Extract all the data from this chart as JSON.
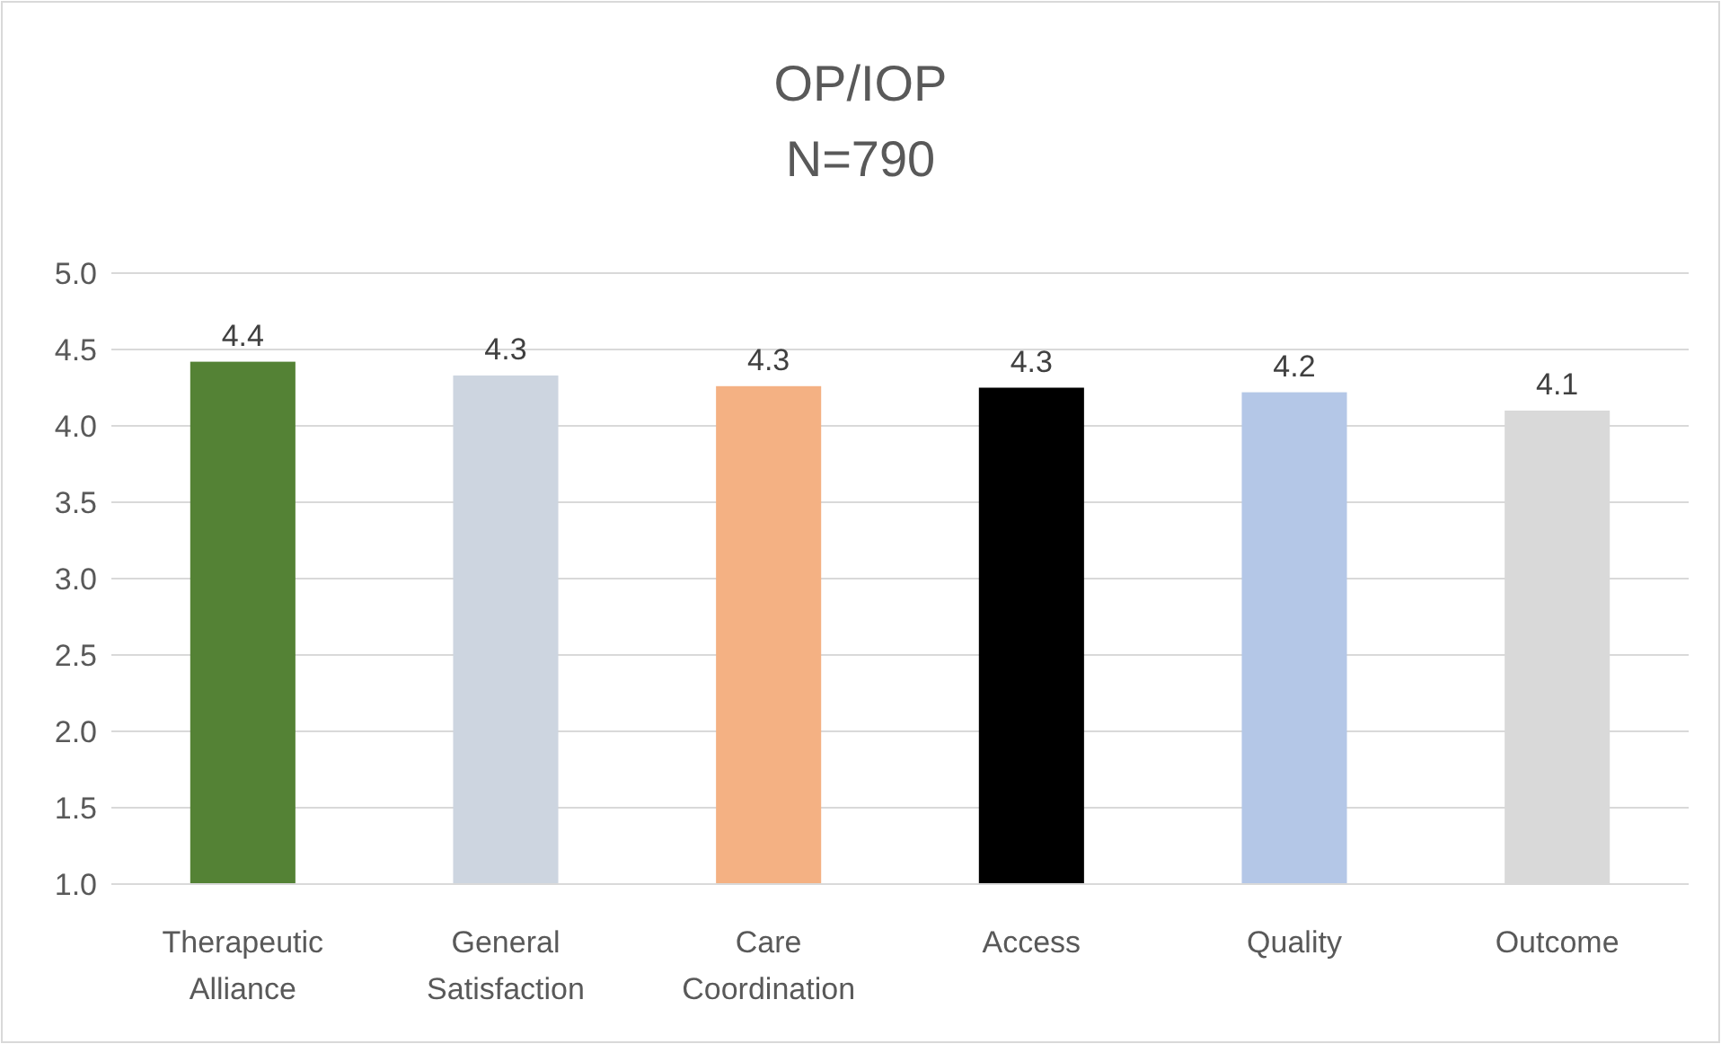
{
  "chart_data": {
    "type": "bar",
    "title": "OP/IOP",
    "subtitle": "N=790",
    "categories": [
      "Therapeutic Alliance",
      "General Satisfaction",
      "Care Coordination",
      "Access",
      "Quality",
      "Outcome"
    ],
    "values": [
      4.42,
      4.33,
      4.26,
      4.25,
      4.22,
      4.1
    ],
    "colors": [
      "#548235",
      "#cdd5e0",
      "#f4b183",
      "#000000",
      "#b4c7e7",
      "#d9d9d9"
    ],
    "value_labels": [
      "4.4",
      "4.3",
      "4.3",
      "4.3",
      "4.2",
      "4.1"
    ],
    "ylim": [
      1,
      5
    ],
    "yticks": [
      {
        "value": 1,
        "label": "1.0"
      },
      {
        "value": 1.5,
        "label": "1.5"
      },
      {
        "value": 2,
        "label": "2.0"
      },
      {
        "value": 2.5,
        "label": "2.5"
      },
      {
        "value": 3,
        "label": "3.0"
      },
      {
        "value": 3.5,
        "label": "3.5"
      },
      {
        "value": 4,
        "label": "4.0"
      },
      {
        "value": 4.5,
        "label": "4.5"
      },
      {
        "value": 5,
        "label": "5.0"
      }
    ],
    "grid": "y"
  }
}
